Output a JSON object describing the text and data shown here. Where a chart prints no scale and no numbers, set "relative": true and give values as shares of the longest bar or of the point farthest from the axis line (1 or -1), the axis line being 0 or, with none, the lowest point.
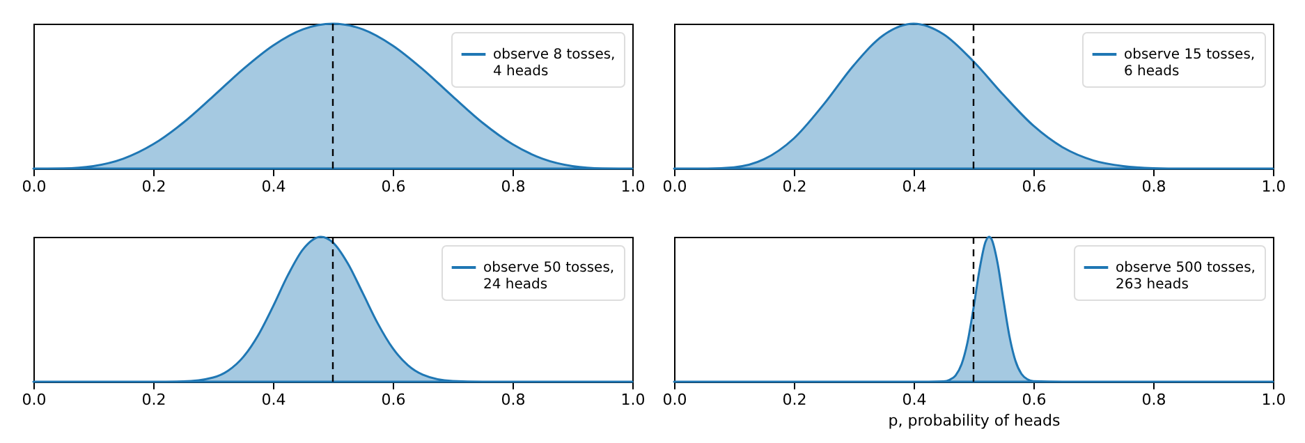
{
  "chart_data": [
    {
      "type": "area",
      "relative": true,
      "xlim": [
        0,
        1
      ],
      "xticks": [
        {
          "value": 0,
          "label": "0.0"
        },
        {
          "value": 0.2,
          "label": "0.2"
        },
        {
          "value": 0.4,
          "label": "0.4"
        },
        {
          "value": 0.6,
          "label": "0.6"
        },
        {
          "value": 0.8,
          "label": "0.8"
        },
        {
          "value": 1,
          "label": "1.0"
        }
      ],
      "legend": "top right",
      "grid": false,
      "ref_lines": [
        {
          "axis": "x",
          "value": 0.5,
          "line_style": "dashed",
          "color": "#000000"
        }
      ],
      "series": [
        {
          "name": "observe 8 tosses,\n 4 heads",
          "color": "#1f77b4",
          "x": [
            0,
            0.05,
            0.1,
            0.15,
            0.2,
            0.25,
            0.3,
            0.35,
            0.4,
            0.45,
            0.5,
            0.55,
            0.6,
            0.65,
            0.7,
            0.75,
            0.8,
            0.85,
            0.9,
            0.95,
            1
          ],
          "values": [
            0,
            0.001,
            0.017,
            0.068,
            0.168,
            0.316,
            0.498,
            0.686,
            0.849,
            0.961,
            1,
            0.961,
            0.849,
            0.686,
            0.498,
            0.316,
            0.168,
            0.068,
            0.017,
            0.001,
            0
          ]
        }
      ]
    },
    {
      "type": "area",
      "relative": true,
      "xlim": [
        0,
        1
      ],
      "xticks": [
        {
          "value": 0,
          "label": "0.0"
        },
        {
          "value": 0.2,
          "label": "0.2"
        },
        {
          "value": 0.4,
          "label": "0.4"
        },
        {
          "value": 0.6,
          "label": "0.6"
        },
        {
          "value": 0.8,
          "label": "0.8"
        },
        {
          "value": 1,
          "label": "1.0"
        }
      ],
      "legend": "top right",
      "grid": false,
      "ref_lines": [
        {
          "axis": "x",
          "value": 0.5,
          "line_style": "dashed",
          "color": "#000000"
        }
      ],
      "series": [
        {
          "name": "observe 15 tosses,\n 6 heads",
          "color": "#1f77b4",
          "x": [
            0,
            0.05,
            0.1,
            0.15,
            0.2,
            0.25,
            0.3,
            0.35,
            0.4,
            0.45,
            0.5,
            0.55,
            0.6,
            0.65,
            0.7,
            0.75,
            0.8,
            0.85,
            0.9,
            1
          ],
          "values": [
            0,
            0,
            0.009,
            0.064,
            0.208,
            0.444,
            0.713,
            0.922,
            1,
            0.927,
            0.739,
            0.508,
            0.296,
            0.144,
            0.056,
            0.017,
            0.003,
            0,
            0,
            0
          ]
        }
      ]
    },
    {
      "type": "area",
      "relative": true,
      "xlim": [
        0,
        1
      ],
      "xticks": [
        {
          "value": 0,
          "label": "0.0"
        },
        {
          "value": 0.2,
          "label": "0.2"
        },
        {
          "value": 0.4,
          "label": "0.4"
        },
        {
          "value": 0.6,
          "label": "0.6"
        },
        {
          "value": 0.8,
          "label": "0.8"
        },
        {
          "value": 1,
          "label": "1.0"
        }
      ],
      "legend": "top right",
      "grid": false,
      "ref_lines": [
        {
          "axis": "x",
          "value": 0.5,
          "line_style": "dashed",
          "color": "#000000"
        }
      ],
      "series": [
        {
          "name": "observe 50 tosses,\n 24 heads",
          "color": "#1f77b4",
          "x": [
            0,
            0.2,
            0.25,
            0.3,
            0.325,
            0.35,
            0.375,
            0.4,
            0.425,
            0.45,
            0.48,
            0.5,
            0.525,
            0.55,
            0.575,
            0.6,
            0.625,
            0.65,
            0.7,
            0.75,
            0.8,
            1
          ],
          "values": [
            0,
            0,
            0.002,
            0.029,
            0.076,
            0.169,
            0.319,
            0.519,
            0.736,
            0.913,
            1,
            0.961,
            0.816,
            0.611,
            0.402,
            0.231,
            0.115,
            0.049,
            0.005,
            0,
            0,
            0
          ]
        }
      ]
    },
    {
      "type": "area",
      "relative": true,
      "xlim": [
        0,
        1
      ],
      "xticks": [
        {
          "value": 0,
          "label": "0.0"
        },
        {
          "value": 0.2,
          "label": "0.2"
        },
        {
          "value": 0.4,
          "label": "0.4"
        },
        {
          "value": 0.6,
          "label": "0.6"
        },
        {
          "value": 0.8,
          "label": "0.8"
        },
        {
          "value": 1,
          "label": "1.0"
        }
      ],
      "legend": "top right",
      "grid": false,
      "xlabel": "p, probability of heads",
      "ref_lines": [
        {
          "axis": "x",
          "value": 0.5,
          "line_style": "dashed",
          "color": "#000000"
        }
      ],
      "series": [
        {
          "name": "observe 500 tosses,\n 263 heads",
          "color": "#1f77b4",
          "x": [
            0,
            0.4,
            0.45,
            0.46,
            0.47,
            0.48,
            0.49,
            0.5,
            0.51,
            0.52,
            0.526,
            0.53,
            0.54,
            0.55,
            0.56,
            0.57,
            0.58,
            0.59,
            0.6,
            0.65,
            1
          ],
          "values": [
            0,
            0,
            0.003,
            0.013,
            0.043,
            0.12,
            0.273,
            0.508,
            0.774,
            0.965,
            1,
            0.984,
            0.822,
            0.562,
            0.314,
            0.144,
            0.054,
            0.017,
            0.004,
            0,
            0
          ]
        }
      ]
    }
  ]
}
